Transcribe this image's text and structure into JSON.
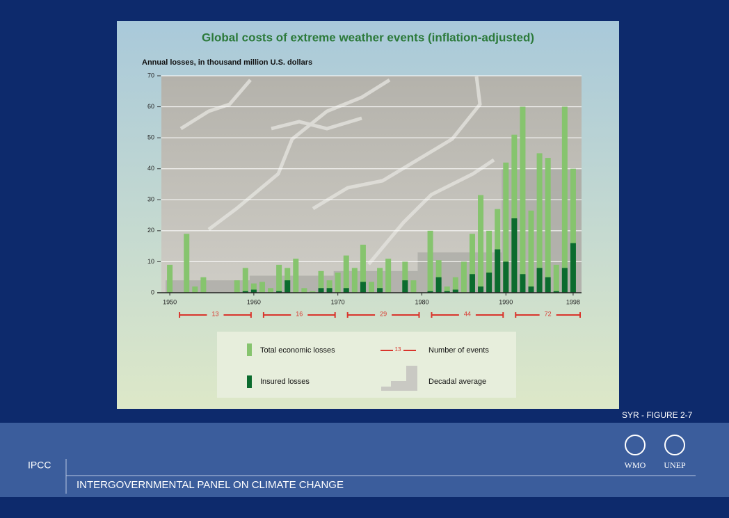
{
  "chart_data": {
    "type": "bar",
    "title": "Global costs of extreme weather events (inflation-adjusted)",
    "y_label": "Annual losses, in thousand million U.S. dollars",
    "x": [
      1950,
      1951,
      1952,
      1953,
      1954,
      1955,
      1956,
      1957,
      1958,
      1959,
      1960,
      1961,
      1962,
      1963,
      1964,
      1965,
      1966,
      1967,
      1968,
      1969,
      1970,
      1971,
      1972,
      1973,
      1974,
      1975,
      1976,
      1977,
      1978,
      1979,
      1980,
      1981,
      1982,
      1983,
      1984,
      1985,
      1986,
      1987,
      1988,
      1989,
      1990,
      1991,
      1992,
      1993,
      1994,
      1995,
      1996,
      1997,
      1998
    ],
    "series": [
      {
        "name": "Total economic losses",
        "color": "#86c46e",
        "values": [
          9,
          0,
          19,
          2,
          5,
          0,
          0,
          0,
          4,
          8,
          3,
          3.5,
          1.5,
          9,
          8,
          11,
          1.5,
          0.5,
          7,
          4,
          6.5,
          12,
          8,
          15.5,
          3.5,
          8,
          11,
          0,
          10,
          4,
          0,
          20,
          10.5,
          2,
          5,
          10,
          19,
          31.5,
          20,
          27,
          42,
          51,
          60,
          26.5,
          45,
          43.5,
          9,
          60,
          40
        ]
      },
      {
        "name": "Insured losses",
        "color": "#0b6b2e",
        "values": [
          0,
          0,
          0,
          0,
          0,
          0,
          0,
          0,
          0,
          0.5,
          1,
          0,
          0,
          0.5,
          4,
          0,
          0,
          0,
          1.5,
          1.5,
          0,
          1.5,
          0,
          3.5,
          0,
          1.5,
          0,
          0,
          4,
          0,
          0,
          0.5,
          5,
          0.5,
          1,
          0,
          6,
          2,
          6.5,
          14,
          10,
          24,
          6,
          2,
          8,
          5,
          0.5,
          8,
          16
        ]
      }
    ],
    "decades": [
      1950,
      1960,
      1970,
      1980,
      1990
    ],
    "decadal_average": {
      "name": "Decadal average",
      "color": "#a9a9a4",
      "values": [
        4,
        5.5,
        7,
        13,
        40
      ]
    },
    "events": {
      "name": "Number of events",
      "color": "#d9342b",
      "values": [
        13,
        16,
        29,
        44,
        72
      ],
      "sample_label": "13"
    },
    "xlim": [
      1949,
      1999
    ],
    "xticks": [
      1950,
      1960,
      1970,
      1980,
      1990,
      1998
    ],
    "ylim": [
      0,
      70
    ],
    "yticks": [
      0,
      10,
      20,
      30,
      40,
      50,
      60,
      70
    ],
    "grid": true
  },
  "figure_id": "SYR - FIGURE 2-7",
  "footer": {
    "org_short": "IPCC",
    "org_long": "INTERGOVERNMENTAL PANEL ON CLIMATE CHANGE",
    "logo1": "WMO",
    "logo2": "UNEP"
  }
}
